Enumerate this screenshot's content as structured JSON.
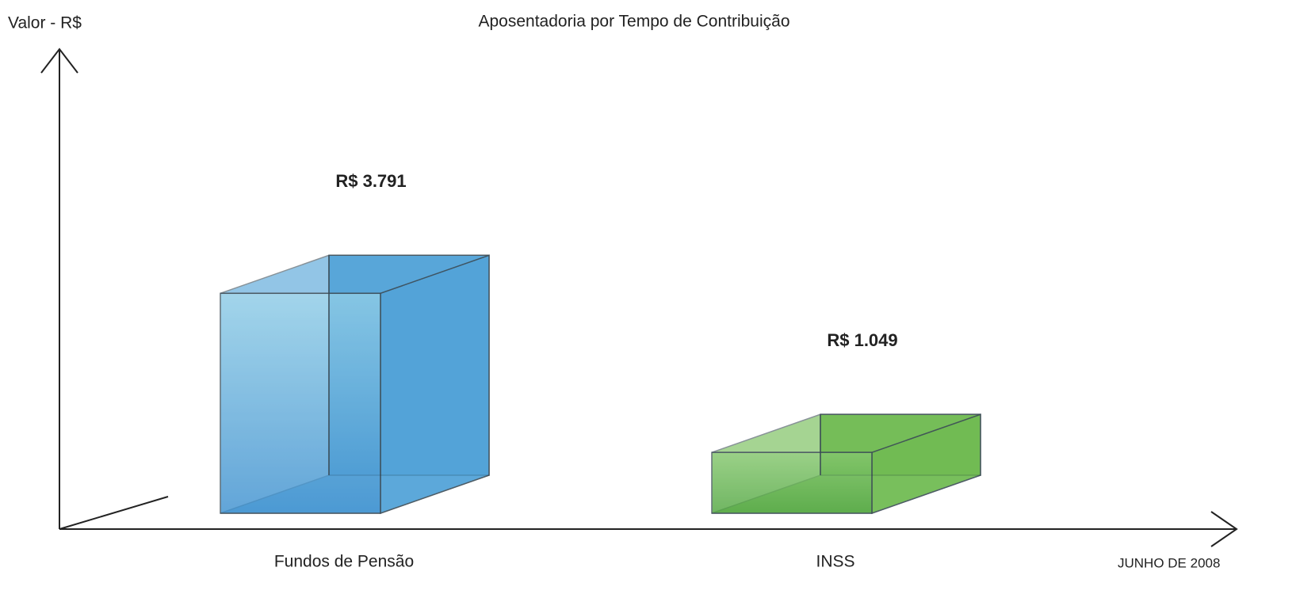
{
  "chart_data": {
    "type": "bar3d",
    "title": "Aposentadoria por Tempo de Contribuição",
    "y_label": "Valor - R$",
    "annotation": "JUNHO DE 2008",
    "categories": [
      "Fundos de Pensão",
      "INSS"
    ],
    "values": [
      3791,
      1049
    ],
    "value_labels": [
      "R$ 3.791",
      "R$ 1.049"
    ],
    "colors": [
      "#4a9fd6",
      "#6ab84a"
    ],
    "ylim": [
      0,
      8000
    ]
  }
}
